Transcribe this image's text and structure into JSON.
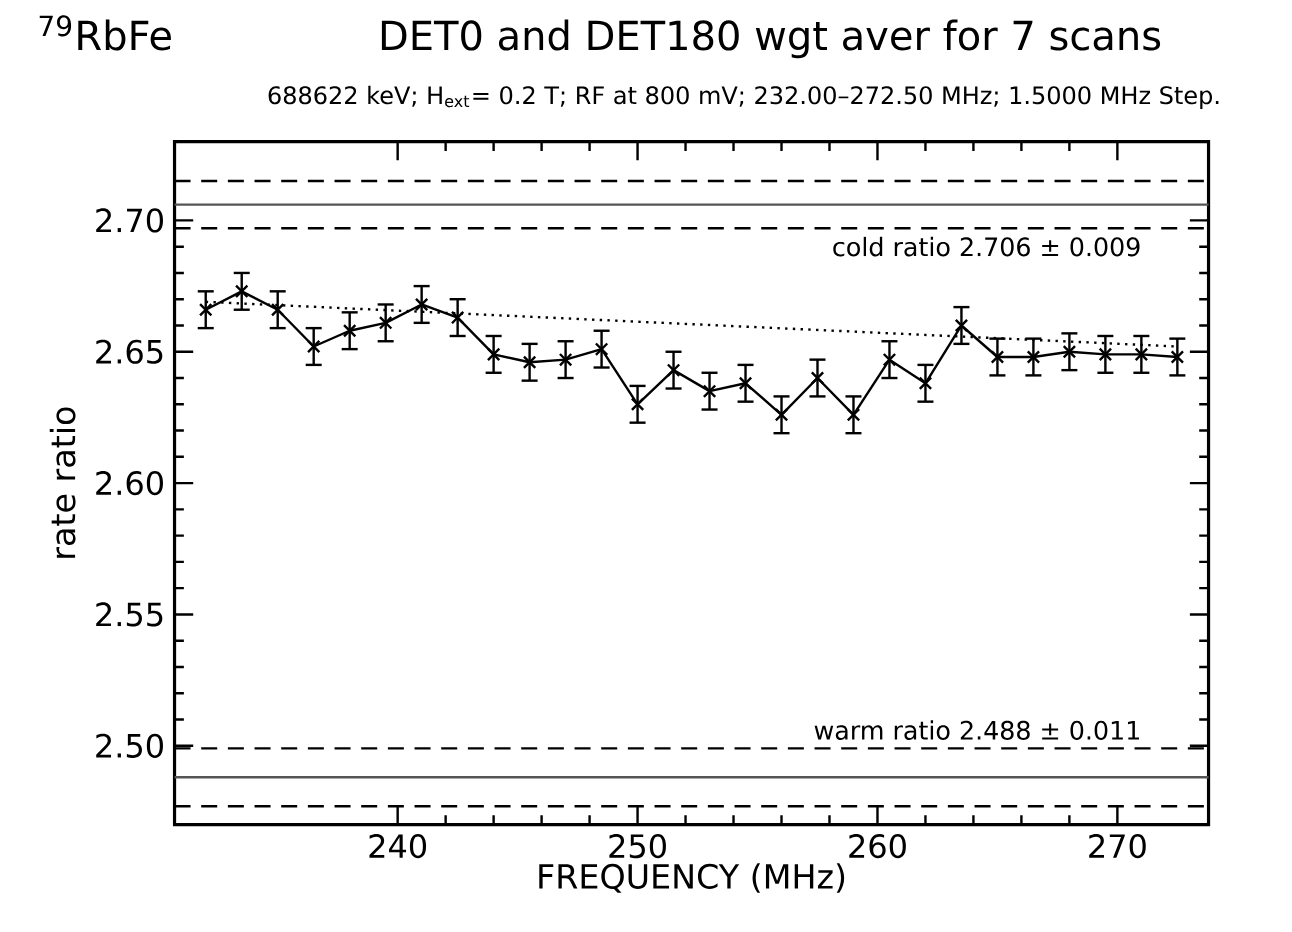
{
  "chart_data": {
    "type": "line",
    "title": "DET0 and DET180 wgt aver for 7 scans",
    "subtitle": "688622 keV; H$_{ext}$= 0.2 T; RF at 800 mV; 232.00–272.50 MHz; 1.5000 MHz Step.",
    "annotations": [
      "$^{79}$RbFe"
    ],
    "xlabel": "FREQUENCY (MHz)",
    "ylabel": "rate ratio",
    "xlim": [
      230.7,
      273.8
    ],
    "ylim": [
      2.47,
      2.73
    ],
    "xticks": [
      240,
      250,
      260,
      270
    ],
    "yticks": [
      {
        "value": 2.5,
        "label": "2.50"
      },
      2.55,
      {
        "value": 2.6,
        "label": "2.60"
      },
      2.65,
      {
        "value": 2.7,
        "label": "2.70"
      }
    ],
    "marker": "cross",
    "line_style": "solid",
    "series": [
      {
        "color": "#000000",
        "x": [
          232,
          233.5,
          235,
          236.5,
          238,
          239.5,
          241,
          242.5,
          244,
          245.5,
          247,
          248.5,
          250,
          251.5,
          253,
          254.5,
          256,
          257.5,
          259,
          260.5,
          262,
          263.5,
          265,
          266.5,
          268,
          269.5,
          271,
          272.5
        ],
        "values": [
          2.666,
          2.673,
          2.666,
          2.652,
          2.658,
          2.661,
          2.668,
          2.663,
          2.649,
          2.646,
          2.647,
          2.651,
          2.63,
          2.643,
          2.635,
          2.638,
          2.626,
          2.64,
          2.626,
          2.647,
          2.638,
          2.66,
          2.648,
          2.648,
          2.65,
          2.649,
          2.649,
          2.648
        ],
        "errors": [
          0.007,
          0.007,
          0.007,
          0.007,
          0.007,
          0.007,
          0.007,
          0.007,
          0.007,
          0.007,
          0.007,
          0.007,
          0.007,
          0.007,
          0.007,
          0.007,
          0.007,
          0.007,
          0.007,
          0.007,
          0.007,
          0.007,
          0.007,
          0.007,
          0.007,
          0.007,
          0.007,
          0.007
        ]
      },
      {
        "color": "#000000",
        "marker": "none",
        "line_style": "dotted",
        "x": [
          232,
          272.5
        ],
        "values": [
          2.669,
          2.652
        ]
      }
    ],
    "ref_lines": [
      {
        "axis": "y",
        "value": 2.715,
        "color": "#000000",
        "line_style": "dashed"
      },
      {
        "axis": "y",
        "value": 2.706,
        "color": "#555555",
        "line_style": "solid"
      },
      {
        "axis": "y",
        "value": 2.697,
        "color": "#000000",
        "line_style": "dashed",
        "label": "cold ratio  2.706 ± 0.009"
      },
      {
        "axis": "y",
        "value": 2.499,
        "color": "#000000",
        "line_style": "dashed",
        "label": "warm ratio  2.488 ± 0.011"
      },
      {
        "axis": "y",
        "value": 2.488,
        "color": "#555555",
        "line_style": "solid"
      },
      {
        "axis": "y",
        "value": 2.477,
        "color": "#000000",
        "line_style": "dashed"
      }
    ]
  }
}
